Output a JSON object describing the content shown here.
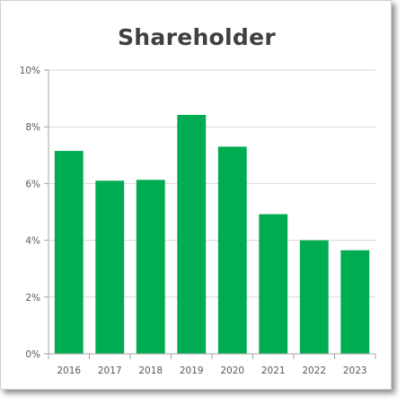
{
  "chart_data": {
    "type": "bar",
    "title": "Shareholder",
    "categories": [
      "2016",
      "2017",
      "2018",
      "2019",
      "2020",
      "2021",
      "2022",
      "2023"
    ],
    "values": [
      7.15,
      6.1,
      6.13,
      8.42,
      7.3,
      4.92,
      4.0,
      3.65
    ],
    "ylim": [
      0,
      10
    ],
    "yticks": [
      "0%",
      "2%",
      "4%",
      "6%",
      "8%",
      "10%"
    ],
    "ytick_values": [
      0,
      2,
      4,
      6,
      8,
      10
    ],
    "grid": true,
    "legend": "none",
    "bar_color": "#00AC51"
  }
}
